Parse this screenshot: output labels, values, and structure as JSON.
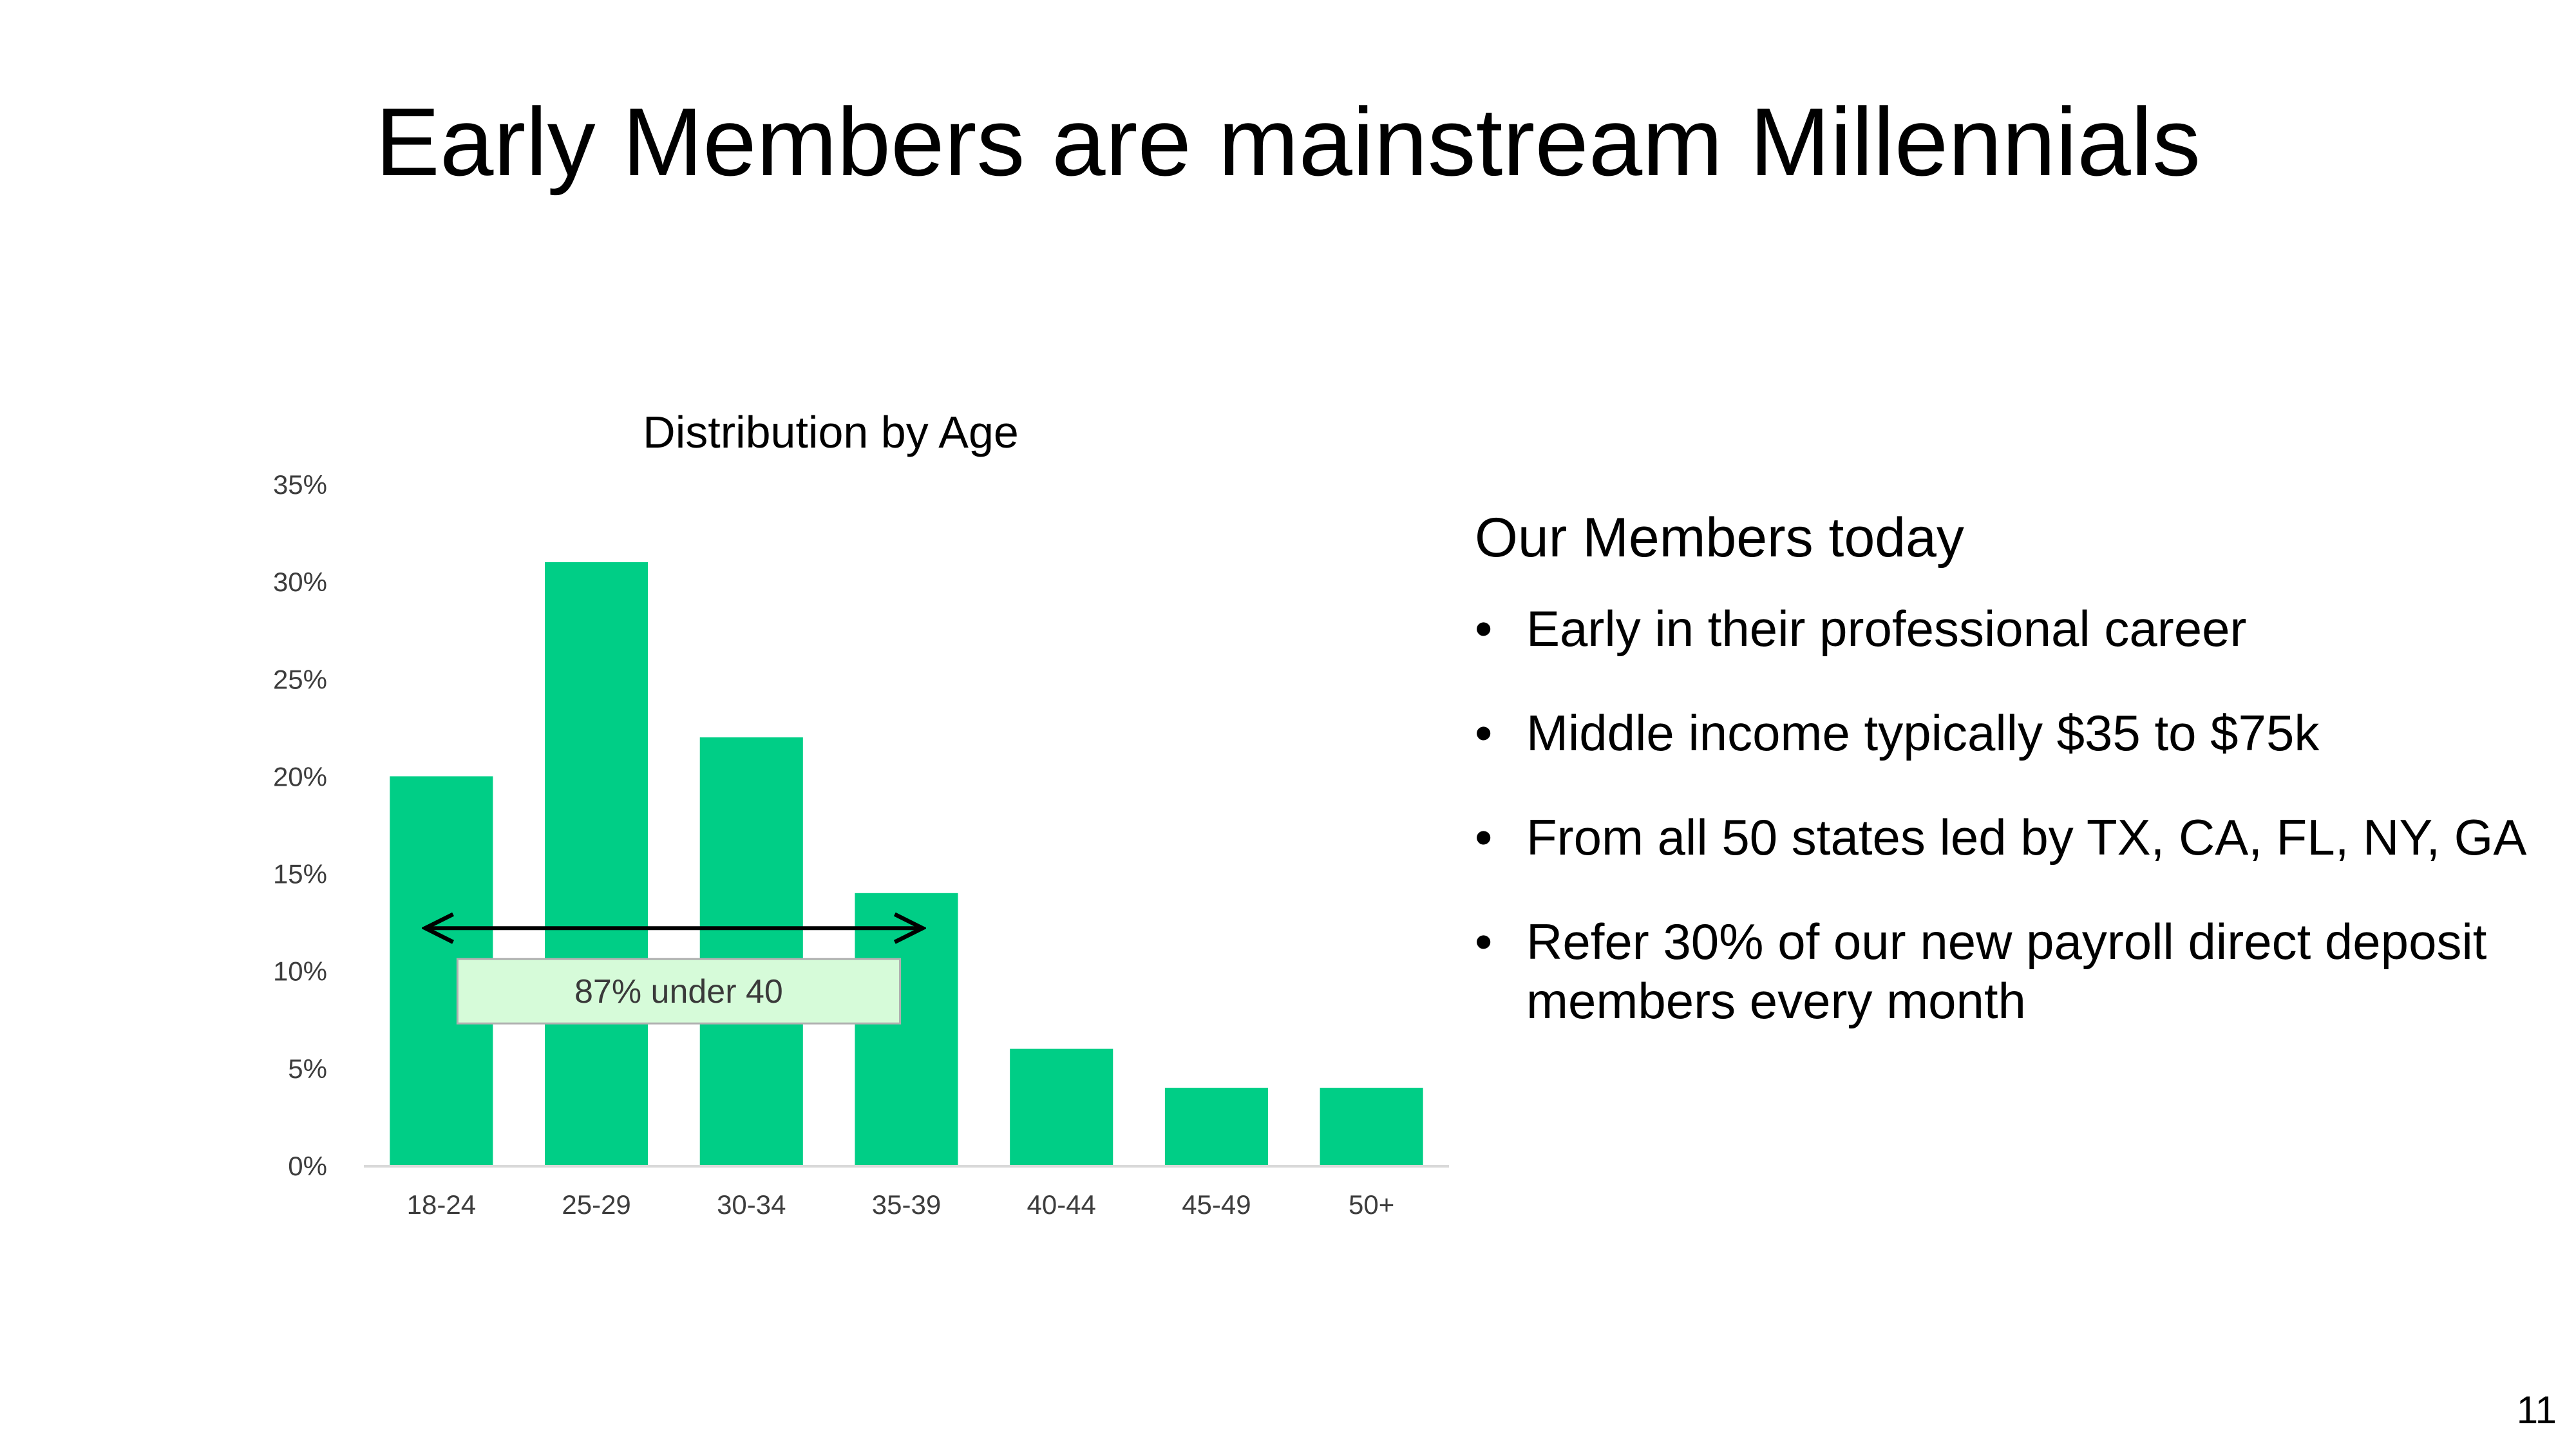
{
  "slide": {
    "title": "Early Members are mainstream Millennials",
    "page_number": "11"
  },
  "colors": {
    "bar": "#00CE86",
    "annotation_fill": "#D6FBD9",
    "annotation_stroke": "#B0B0B0",
    "axis": "#D9D9D9"
  },
  "chart_data": {
    "type": "bar",
    "title": "Distribution by Age",
    "categories": [
      "18-24",
      "25-29",
      "30-34",
      "35-39",
      "40-44",
      "45-49",
      "50+"
    ],
    "values": [
      20,
      31,
      22,
      14,
      6,
      4,
      4
    ],
    "value_unit": "%",
    "ylim": [
      0,
      35
    ],
    "yticks": [
      0,
      5,
      10,
      15,
      20,
      25,
      30,
      35
    ],
    "ytick_labels": [
      "0%",
      "5%",
      "10%",
      "15%",
      "20%",
      "25%",
      "30%",
      "35%"
    ],
    "xlabel": "",
    "ylabel": "",
    "grid": false,
    "annotation": {
      "text": "87% under 40",
      "span_from": "18-24",
      "span_to": "35-39"
    }
  },
  "panel": {
    "heading": "Our Members today",
    "bullet_glyph": "•",
    "bullets": [
      "Early in their professional career",
      "Middle income typically $35 to $75k",
      "From all 50 states led by TX, CA, FL, NY, GA",
      "Refer 30% of our new payroll direct deposit members every month"
    ]
  }
}
